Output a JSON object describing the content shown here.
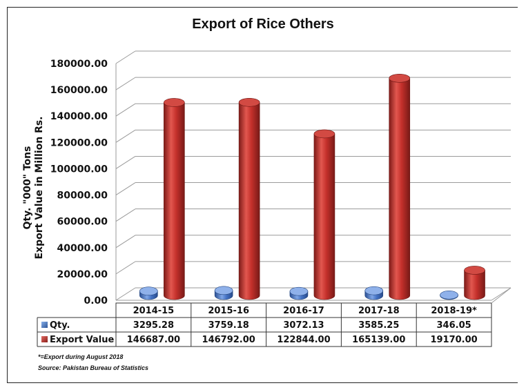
{
  "chart_data": {
    "type": "bar",
    "title": "Export of Rice Others",
    "ylabel": [
      "Qty. \"000\" Tons",
      "Export Value in Million Rs."
    ],
    "xlabel": "",
    "ylim": [
      0,
      180000
    ],
    "yticks": [
      "180000.00",
      "160000.00",
      "140000.00",
      "120000.00",
      "100000.00",
      "80000.00",
      "60000.00",
      "40000.00",
      "20000.00",
      "0.00"
    ],
    "grid": true,
    "style": "3d-cylinder",
    "categories": [
      "2014-15",
      "2015-16",
      "2016-17",
      "2017-18",
      "2018-19*"
    ],
    "series": [
      {
        "name": "Qty.",
        "color": "#4472C4",
        "values": [
          3295.28,
          3759.18,
          3072.13,
          3585.25,
          346.05
        ],
        "labels": [
          "3295.28",
          "3759.18",
          "3072.13",
          "3585.25",
          "346.05"
        ]
      },
      {
        "name": "Export Value",
        "color": "#C0312E",
        "values": [
          146687.0,
          146792.0,
          122844.0,
          165139.0,
          19170.0
        ],
        "labels": [
          "146687.00",
          "146792.00",
          "122844.00",
          "165139.00",
          "19170.00"
        ]
      }
    ],
    "legend": "data-table-below"
  },
  "footnotes": {
    "note": "*=Export during August 2018",
    "source": "Source: Pakistan Bureau of Statistics"
  }
}
